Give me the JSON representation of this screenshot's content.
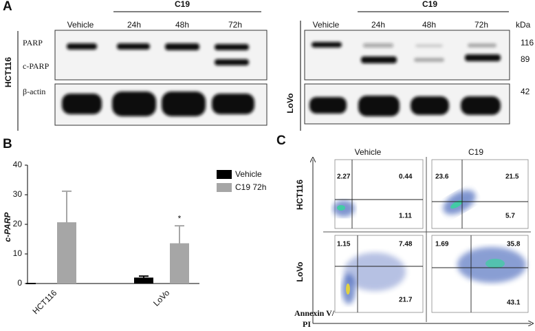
{
  "panel_a": {
    "label": "A",
    "left": {
      "cell_line": "HCT116",
      "group": "C19",
      "lanes": [
        "Vehicle",
        "24h",
        "48h",
        "72h"
      ],
      "rows": [
        "PARP",
        "c-PARP",
        "β-actin"
      ]
    },
    "right": {
      "cell_line": "LoVo",
      "group": "C19",
      "lanes": [
        "Vehicle",
        "24h",
        "48h",
        "72h"
      ],
      "unit": "kDa",
      "sizes": [
        116,
        89,
        42
      ]
    }
  },
  "chart_data": {
    "type": "bar",
    "panel_label": "B",
    "y_label": "c-PARP",
    "categories": [
      "HCT116",
      "LoVo"
    ],
    "series": [
      {
        "name": "Vehicle",
        "color": "#000000",
        "values": [
          0,
          2
        ],
        "errors": [
          0,
          0.5
        ]
      },
      {
        "name": "C19 72h",
        "color": "#a6a6a6",
        "values": [
          20.7,
          13.6
        ],
        "errors": [
          10.5,
          5.9
        ]
      }
    ],
    "annotations": [
      {
        "text": "*",
        "series": 1,
        "category": 1
      }
    ],
    "ylim": [
      0,
      40
    ],
    "yticks": [
      0,
      10,
      20,
      30,
      40
    ],
    "legend": "upper right"
  },
  "panel_c": {
    "label": "C",
    "columns": [
      "Vehicle",
      "C19"
    ],
    "rows": [
      "HCT116",
      "LoVo"
    ],
    "x_label": "Annexin V/",
    "y_label": "PI",
    "plots": [
      {
        "upper_left": 2.27,
        "upper_right": 0.44,
        "lower_right": 1.11
      },
      {
        "upper_left": 23.6,
        "upper_right": 21.5,
        "lower_right": 5.7
      },
      {
        "upper_left": 1.15,
        "upper_right": 7.48,
        "lower_right": 21.7
      },
      {
        "upper_left": 1.69,
        "upper_right": 35.8,
        "lower_right": 43.1
      }
    ]
  }
}
